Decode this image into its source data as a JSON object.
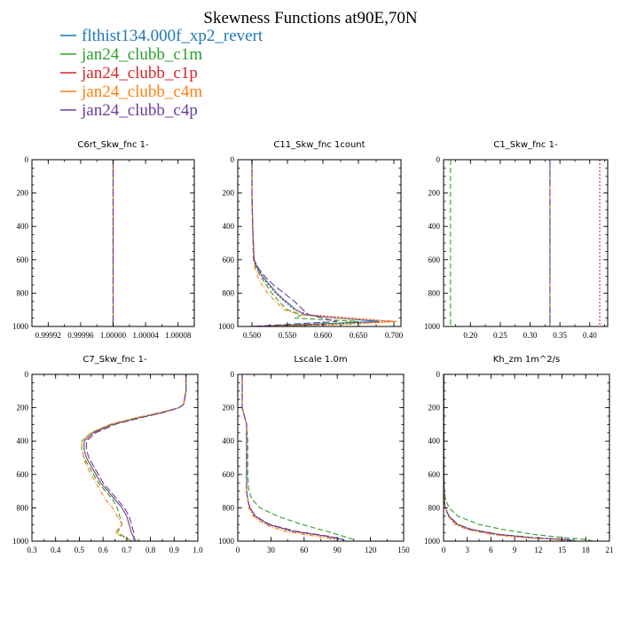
{
  "figure": {
    "title": "Skewness Functions at90E,70N"
  },
  "legend": [
    {
      "label": "flthist134.000f_xp2_revert",
      "color": "#1f77b4"
    },
    {
      "label": "jan24_clubb_c1m",
      "color": "#2ca02c"
    },
    {
      "label": "jan24_clubb_c1p",
      "color": "#d62728"
    },
    {
      "label": "jan24_clubb_c4m",
      "color": "#ff7f0e"
    },
    {
      "label": "jan24_clubb_c4p",
      "color": "#6a3d9a"
    }
  ],
  "chart_data": [
    {
      "type": "line",
      "title": "C6rt_Skw_fnc   1-",
      "xlim": [
        0.9999,
        1.0001
      ],
      "xticks": [
        0.99992,
        0.99996,
        1.0,
        1.00004,
        1.00008
      ],
      "xtick_labels": [
        "0.99992",
        "0.99996",
        "1.00000",
        "1.00004",
        "1.00008"
      ],
      "ylim": [
        1000,
        0
      ],
      "yticks": [
        0,
        200,
        400,
        600,
        800,
        1000
      ],
      "ytick_labels": [
        "0",
        "200",
        "400",
        "600",
        "800",
        "1000"
      ],
      "y": [
        0,
        1000
      ],
      "series": [
        {
          "x": [
            1.0,
            1.0
          ]
        },
        {
          "x": [
            1.0,
            1.0
          ]
        },
        {
          "x": [
            1.0,
            1.0
          ]
        },
        {
          "x": [
            1.0,
            1.0
          ]
        },
        {
          "x": [
            1.0,
            1.0
          ]
        }
      ]
    },
    {
      "type": "line",
      "title": "C11_Skw_fnc   1count",
      "xlim": [
        0.48,
        0.71
      ],
      "xticks": [
        0.5,
        0.55,
        0.6,
        0.65,
        0.7
      ],
      "xtick_labels": [
        "0.500",
        "0.550",
        "0.600",
        "0.650",
        "0.700"
      ],
      "ylim": [
        1000,
        0
      ],
      "yticks": [
        0,
        200,
        400,
        600,
        800,
        1000
      ],
      "ytick_labels": [
        "0",
        "200",
        "400",
        "600",
        "800",
        "1000"
      ],
      "y": [
        0,
        200,
        400,
        600,
        650,
        700,
        750,
        800,
        850,
        900,
        930,
        950,
        970,
        990,
        1000
      ],
      "series": [
        {
          "x": [
            0.5,
            0.5,
            0.501,
            0.503,
            0.508,
            0.515,
            0.525,
            0.535,
            0.548,
            0.562,
            0.575,
            0.62,
            0.68,
            0.56,
            0.5
          ]
        },
        {
          "x": [
            0.5,
            0.5,
            0.501,
            0.502,
            0.506,
            0.512,
            0.52,
            0.528,
            0.538,
            0.55,
            0.57,
            0.56,
            0.65,
            0.59,
            0.5
          ]
        },
        {
          "x": [
            0.5,
            0.5,
            0.501,
            0.503,
            0.507,
            0.514,
            0.523,
            0.533,
            0.546,
            0.56,
            0.58,
            0.64,
            0.7,
            0.6,
            0.5
          ]
        },
        {
          "x": [
            0.5,
            0.5,
            0.501,
            0.502,
            0.504,
            0.508,
            0.514,
            0.522,
            0.533,
            0.546,
            0.568,
            0.62,
            0.705,
            0.62,
            0.5
          ]
        },
        {
          "x": [
            0.5,
            0.5,
            0.501,
            0.503,
            0.509,
            0.518,
            0.53,
            0.545,
            0.56,
            0.572,
            0.58,
            0.6,
            0.62,
            0.54,
            0.5
          ]
        }
      ]
    },
    {
      "type": "line",
      "title": "C1_Skw_fnc   1-",
      "xlim": [
        0.155,
        0.43
      ],
      "xticks": [
        0.2,
        0.25,
        0.3,
        0.35,
        0.4
      ],
      "xtick_labels": [
        "0.20",
        "0.25",
        "0.30",
        "0.35",
        "0.40"
      ],
      "ylim": [
        1000,
        0
      ],
      "yticks": [
        0,
        200,
        400,
        600,
        800,
        1000
      ],
      "ytick_labels": [
        "0",
        "200",
        "400",
        "600",
        "800",
        "1000"
      ],
      "y": [
        0,
        1000
      ],
      "series": [
        {
          "x": [
            0.3333,
            0.3333
          ]
        },
        {
          "x": [
            0.1667,
            0.1667
          ]
        },
        {
          "x": [
            0.4167,
            0.4167
          ]
        },
        {
          "x": [
            0.3333,
            0.3333
          ]
        },
        {
          "x": [
            0.3333,
            0.3333
          ]
        }
      ]
    },
    {
      "type": "line",
      "title": "C7_Skw_fnc   1-",
      "xlim": [
        0.3,
        1.0
      ],
      "xticks": [
        0.3,
        0.4,
        0.5,
        0.6,
        0.7,
        0.8,
        0.9,
        1.0
      ],
      "xtick_labels": [
        "0.3",
        "0.4",
        "0.5",
        "0.6",
        "0.7",
        "0.8",
        "0.9",
        "1.0"
      ],
      "ylim": [
        1000,
        0
      ],
      "yticks": [
        0,
        200,
        400,
        600,
        800,
        1000
      ],
      "ytick_labels": [
        "0",
        "200",
        "400",
        "600",
        "800",
        "1000"
      ],
      "y": [
        0,
        100,
        180,
        200,
        230,
        260,
        300,
        350,
        400,
        450,
        500,
        550,
        600,
        650,
        700,
        750,
        800,
        850,
        900,
        950,
        980,
        1000
      ],
      "series": [
        {
          "x": [
            0.95,
            0.95,
            0.94,
            0.92,
            0.85,
            0.75,
            0.64,
            0.56,
            0.52,
            0.52,
            0.53,
            0.55,
            0.57,
            0.59,
            0.62,
            0.65,
            0.68,
            0.7,
            0.71,
            0.72,
            0.73,
            0.73
          ]
        },
        {
          "x": [
            0.95,
            0.95,
            0.94,
            0.92,
            0.84,
            0.74,
            0.63,
            0.55,
            0.51,
            0.51,
            0.52,
            0.54,
            0.56,
            0.58,
            0.61,
            0.64,
            0.66,
            0.67,
            0.68,
            0.66,
            0.7,
            0.72
          ]
        },
        {
          "x": [
            0.95,
            0.95,
            0.94,
            0.92,
            0.85,
            0.75,
            0.64,
            0.56,
            0.52,
            0.52,
            0.53,
            0.55,
            0.57,
            0.59,
            0.62,
            0.65,
            0.68,
            0.7,
            0.71,
            0.72,
            0.73,
            0.74
          ]
        },
        {
          "x": [
            0.95,
            0.95,
            0.94,
            0.92,
            0.84,
            0.74,
            0.63,
            0.55,
            0.51,
            0.51,
            0.52,
            0.53,
            0.55,
            0.57,
            0.59,
            0.61,
            0.64,
            0.66,
            0.68,
            0.65,
            0.69,
            0.73
          ]
        },
        {
          "x": [
            0.95,
            0.95,
            0.94,
            0.92,
            0.85,
            0.76,
            0.65,
            0.57,
            0.53,
            0.53,
            0.54,
            0.56,
            0.58,
            0.6,
            0.63,
            0.66,
            0.69,
            0.71,
            0.72,
            0.73,
            0.73,
            0.74
          ]
        }
      ]
    },
    {
      "type": "line",
      "title": "Lscale   1.0m",
      "xlim": [
        0,
        150
      ],
      "xticks": [
        0,
        30,
        60,
        90,
        120,
        150
      ],
      "xtick_labels": [
        "0",
        "30",
        "60",
        "90",
        "120",
        "150"
      ],
      "ylim": [
        1000,
        0
      ],
      "yticks": [
        0,
        200,
        400,
        600,
        800,
        1000
      ],
      "ytick_labels": [
        "0",
        "200",
        "400",
        "600",
        "800",
        "1000"
      ],
      "y": [
        0,
        100,
        200,
        250,
        300,
        400,
        500,
        600,
        700,
        750,
        800,
        850,
        900,
        940,
        970,
        990,
        1000
      ],
      "series": [
        {
          "x": [
            4,
            4,
            4,
            6,
            8,
            8,
            8,
            8,
            8,
            9,
            11,
            16,
            28,
            50,
            80,
            95,
            95
          ]
        },
        {
          "x": [
            4,
            4,
            4,
            6,
            8,
            9,
            9,
            9,
            10,
            13,
            20,
            36,
            58,
            80,
            95,
            105,
            105
          ]
        },
        {
          "x": [
            4,
            4,
            4,
            6,
            8,
            8,
            8,
            8,
            8,
            9,
            11,
            15,
            27,
            48,
            78,
            92,
            92
          ]
        },
        {
          "x": [
            4,
            4,
            4,
            6,
            8,
            8,
            8,
            8,
            8,
            9,
            10,
            14,
            24,
            42,
            70,
            88,
            88
          ]
        },
        {
          "x": [
            4,
            4,
            4,
            6,
            8,
            8,
            8,
            8,
            8,
            9,
            11,
            16,
            29,
            52,
            82,
            96,
            96
          ]
        }
      ]
    },
    {
      "type": "line",
      "title": "Kh_zm   1m^2/s",
      "xlim": [
        0,
        21
      ],
      "xticks": [
        0,
        3,
        6,
        9,
        12,
        15,
        18,
        21
      ],
      "xtick_labels": [
        "0",
        "3",
        "6",
        "9",
        "12",
        "15",
        "18",
        "21"
      ],
      "ylim": [
        1000,
        0
      ],
      "yticks": [
        0,
        200,
        400,
        600,
        800,
        1000
      ],
      "ytick_labels": [
        "0",
        "200",
        "400",
        "600",
        "800",
        "1000"
      ],
      "y": [
        0,
        200,
        400,
        600,
        700,
        750,
        800,
        850,
        900,
        930,
        960,
        980,
        990,
        1000
      ],
      "series": [
        {
          "x": [
            0.05,
            0.05,
            0.05,
            0.05,
            0.06,
            0.1,
            0.2,
            0.7,
            1.8,
            3.5,
            7.0,
            11.5,
            15.5,
            16.5
          ]
        },
        {
          "x": [
            0.05,
            0.05,
            0.05,
            0.06,
            0.1,
            0.25,
            0.7,
            1.8,
            4.5,
            7.5,
            11.5,
            15.5,
            18.0,
            19.0
          ]
        },
        {
          "x": [
            0.05,
            0.05,
            0.05,
            0.05,
            0.06,
            0.1,
            0.2,
            0.6,
            1.6,
            3.2,
            6.5,
            11.0,
            15.0,
            16.0
          ]
        },
        {
          "x": [
            0.05,
            0.05,
            0.05,
            0.05,
            0.06,
            0.1,
            0.2,
            0.6,
            1.5,
            3.0,
            6.0,
            10.5,
            14.5,
            15.5
          ]
        },
        {
          "x": [
            0.05,
            0.05,
            0.05,
            0.05,
            0.06,
            0.1,
            0.2,
            0.7,
            1.8,
            3.6,
            7.2,
            11.8,
            15.8,
            16.8
          ]
        }
      ]
    }
  ]
}
